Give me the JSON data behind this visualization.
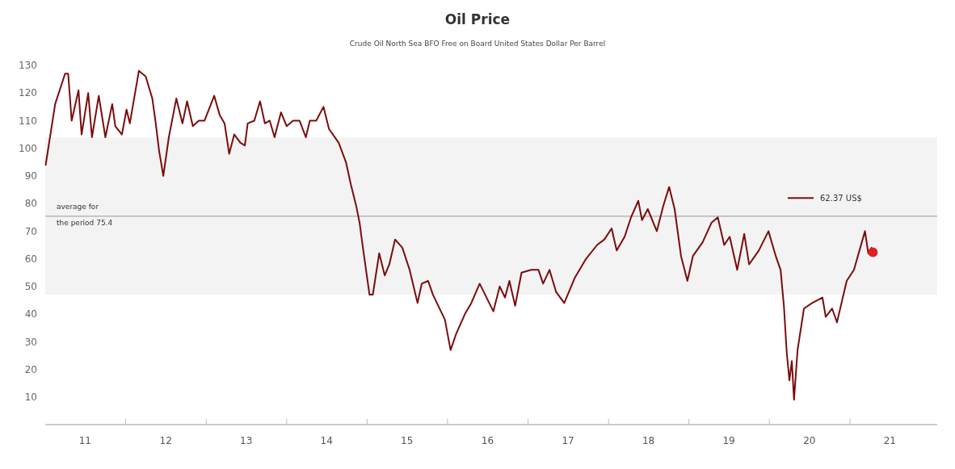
{
  "chart_data": {
    "type": "line",
    "title": "Oil Price",
    "subtitle": "Crude Oil North Sea BFO Free on Board United States Dollar Per Barrel",
    "xlim": [
      "2011-01-01",
      "2022-02-01"
    ],
    "xticks": [
      {
        "value": "2011-07-01",
        "label": "11"
      },
      {
        "value": "2012-01-01",
        "label": null
      },
      {
        "value": "2012-07-01",
        "label": "12"
      },
      {
        "value": "2013-01-01",
        "label": null
      },
      {
        "value": "2013-07-01",
        "label": "13"
      },
      {
        "value": "2014-01-01",
        "label": null
      },
      {
        "value": "2014-07-01",
        "label": "14"
      },
      {
        "value": "2015-01-01",
        "label": null
      },
      {
        "value": "2015-07-01",
        "label": "15"
      },
      {
        "value": "2016-01-01",
        "label": null
      },
      {
        "value": "2016-07-01",
        "label": "16"
      },
      {
        "value": "2017-01-01",
        "label": null
      },
      {
        "value": "2017-07-01",
        "label": "17"
      },
      {
        "value": "2018-01-01",
        "label": null
      },
      {
        "value": "2018-07-01",
        "label": "18"
      },
      {
        "value": "2019-01-01",
        "label": null
      },
      {
        "value": "2019-07-01",
        "label": "19"
      },
      {
        "value": "2020-01-01",
        "label": null
      },
      {
        "value": "2020-07-01",
        "label": "20"
      },
      {
        "value": "2021-01-01",
        "label": null
      },
      {
        "value": "2021-07-01",
        "label": "21"
      }
    ],
    "ylim": [
      0,
      130
    ],
    "yticks": [
      10,
      20,
      30,
      40,
      50,
      60,
      70,
      80,
      90,
      100,
      110,
      120,
      130
    ],
    "grid": false,
    "legend": "right",
    "line_style": "solid",
    "marker": "none",
    "ref_lines": [
      {
        "axis": "y",
        "value": 75.4,
        "label": "average for\nthe period 75.4",
        "color": "#999999"
      }
    ],
    "bands": [
      {
        "axis": "y",
        "from": 47,
        "to": 104,
        "color": "#f3f3f3"
      }
    ],
    "series": [
      {
        "name": "62.37 US$",
        "color": "#7b0c0c",
        "x": [
          "2011-01-03",
          "2011-02-15",
          "2011-04-01",
          "2011-04-15",
          "2011-05-01",
          "2011-06-01",
          "2011-06-15",
          "2011-07-15",
          "2011-08-01",
          "2011-09-01",
          "2011-10-01",
          "2011-11-01",
          "2011-11-15",
          "2011-12-15",
          "2012-01-05",
          "2012-01-20",
          "2012-03-01",
          "2012-04-01",
          "2012-05-01",
          "2012-05-15",
          "2012-06-01",
          "2012-06-20",
          "2012-07-15",
          "2012-08-18",
          "2012-09-15",
          "2012-10-06",
          "2012-11-01",
          "2012-11-28",
          "2012-12-24",
          "2013-02-06",
          "2013-03-03",
          "2013-03-25",
          "2013-04-15",
          "2013-05-08",
          "2013-06-05",
          "2013-06-25",
          "2013-07-08",
          "2013-08-07",
          "2013-09-02",
          "2013-09-24",
          "2013-10-16",
          "2013-11-07",
          "2013-12-06",
          "2014-01-01",
          "2014-01-30",
          "2014-02-28",
          "2014-03-29",
          "2014-04-16",
          "2014-05-15",
          "2014-06-17",
          "2014-07-12",
          "2014-08-25",
          "2014-09-27",
          "2014-10-19",
          "2014-11-13",
          "2014-11-28",
          "2014-12-13",
          "2015-01-12",
          "2015-01-27",
          "2015-02-25",
          "2015-03-22",
          "2015-04-12",
          "2015-05-08",
          "2015-06-10",
          "2015-07-13",
          "2015-08-18",
          "2015-09-06",
          "2015-10-05",
          "2015-10-27",
          "2015-11-14",
          "2015-12-20",
          "2016-01-15",
          "2016-02-10",
          "2016-03-20",
          "2016-04-18",
          "2016-05-26",
          "2016-07-27",
          "2016-08-25",
          "2016-09-18",
          "2016-10-08",
          "2016-11-03",
          "2016-12-02",
          "2017-01-15",
          "2017-02-17",
          "2017-03-10",
          "2017-04-08",
          "2017-05-08",
          "2017-06-14",
          "2017-07-31",
          "2017-09-21",
          "2017-11-10",
          "2017-12-13",
          "2018-01-15",
          "2018-02-07",
          "2018-03-15",
          "2018-04-13",
          "2018-05-16",
          "2018-06-02",
          "2018-06-28",
          "2018-08-08",
          "2018-09-06",
          "2018-10-03",
          "2018-10-28",
          "2018-11-26",
          "2018-12-25",
          "2019-01-19",
          "2019-03-04",
          "2019-04-13",
          "2019-05-12",
          "2019-06-10",
          "2019-07-05",
          "2019-08-08",
          "2019-09-09",
          "2019-10-01",
          "2019-11-14",
          "2019-12-28",
          "2020-01-30",
          "2020-02-21",
          "2020-03-07",
          "2020-03-20",
          "2020-04-01",
          "2020-04-12",
          "2020-04-22",
          "2020-05-08",
          "2020-06-06",
          "2020-07-13",
          "2020-08-29",
          "2020-09-13",
          "2020-10-12",
          "2020-11-03",
          "2020-12-17",
          "2021-01-19",
          "2021-03-10",
          "2021-03-25",
          "2021-04-08"
        ],
        "values": [
          94,
          116,
          127,
          127,
          110,
          121,
          105,
          120,
          104,
          119,
          104,
          116,
          108,
          105,
          114,
          109,
          128,
          126,
          118,
          110,
          99,
          90,
          104,
          118,
          109,
          117,
          108,
          110,
          110,
          119,
          112,
          109,
          98,
          105,
          102,
          101,
          109,
          110,
          117,
          109,
          110,
          104,
          113,
          108,
          110,
          110,
          104,
          110,
          110,
          115,
          107,
          102,
          95,
          87,
          79,
          73,
          64,
          47,
          47,
          62,
          54,
          58,
          67,
          64,
          56,
          44,
          51,
          52,
          47,
          44,
          38,
          27,
          33,
          40,
          44,
          51,
          41,
          50,
          46,
          52,
          43,
          55,
          56,
          56,
          51,
          56,
          48,
          44,
          53,
          60,
          65,
          67,
          71,
          63,
          68,
          75,
          81,
          74,
          78,
          70,
          79,
          86,
          78,
          61,
          52,
          61,
          66,
          73,
          75,
          65,
          68,
          56,
          69,
          58,
          63,
          70,
          61,
          56,
          43,
          26,
          16,
          23,
          9,
          27,
          42,
          44,
          46,
          39,
          42,
          37,
          52,
          56,
          70,
          62,
          64
        ]
      },
      {
        "type": "scatter",
        "marker": "circle",
        "color": "#e02020",
        "x": [
          "2021-04-15"
        ],
        "values": [
          62.37
        ]
      }
    ]
  }
}
